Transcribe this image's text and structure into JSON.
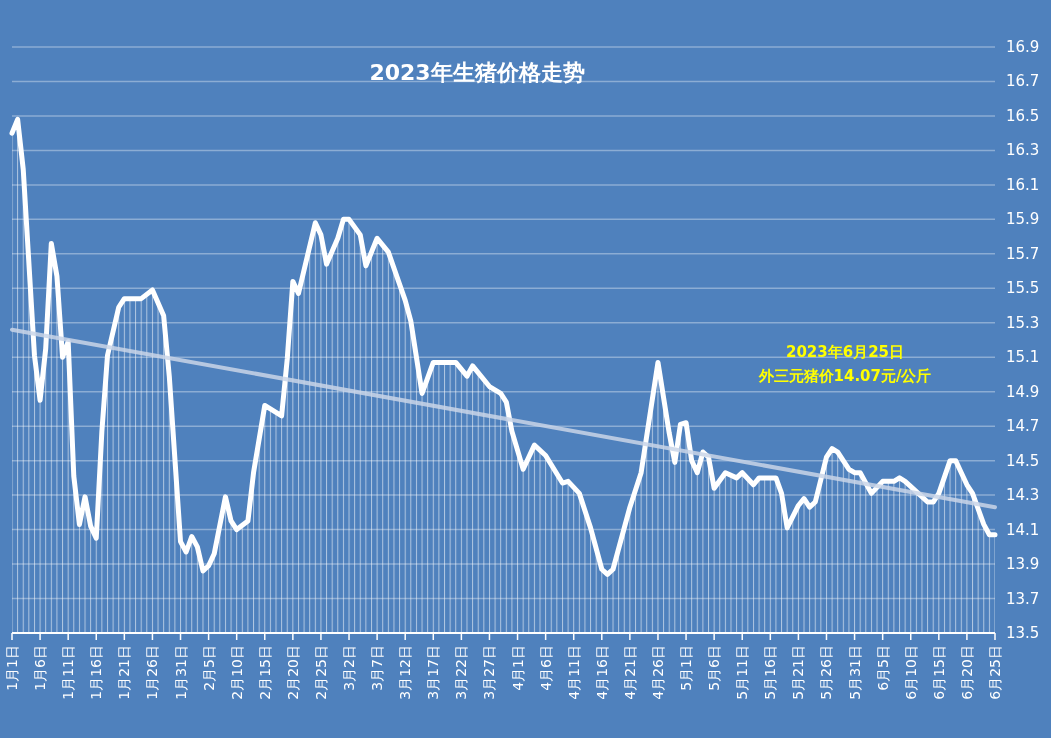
{
  "chart_data": {
    "type": "area",
    "title": "2023年生猪价格走势",
    "annotations": [
      "2023年6月25日",
      "外三元猪价14.07元/公斤"
    ],
    "xlim": [
      "--01-01",
      "--06-25"
    ],
    "xticks": [
      {
        "value": "--01-01",
        "label": "1月1日"
      },
      {
        "value": "--01-06",
        "label": "1月6日"
      },
      {
        "value": "--01-11",
        "label": "1月11日"
      },
      {
        "value": "--01-16",
        "label": "1月16日"
      },
      {
        "value": "--01-21",
        "label": "1月21日"
      },
      {
        "value": "--01-26",
        "label": "1月26日"
      },
      {
        "value": "--01-31",
        "label": "1月31日"
      },
      {
        "value": "--02-05",
        "label": "2月5日"
      },
      {
        "value": "--02-10",
        "label": "2月10日"
      },
      {
        "value": "--02-15",
        "label": "2月15日"
      },
      {
        "value": "--02-20",
        "label": "2月20日"
      },
      {
        "value": "--02-25",
        "label": "2月25日"
      },
      {
        "value": "--03-02",
        "label": "3月2日"
      },
      {
        "value": "--03-07",
        "label": "3月7日"
      },
      {
        "value": "--03-12",
        "label": "3月12日"
      },
      {
        "value": "--03-17",
        "label": "3月17日"
      },
      {
        "value": "--03-22",
        "label": "3月22日"
      },
      {
        "value": "--03-27",
        "label": "3月27日"
      },
      {
        "value": "--04-01",
        "label": "4月1日"
      },
      {
        "value": "--04-06",
        "label": "4月6日"
      },
      {
        "value": "--04-11",
        "label": "4月11日"
      },
      {
        "value": "--04-16",
        "label": "4月16日"
      },
      {
        "value": "--04-21",
        "label": "4月21日"
      },
      {
        "value": "--04-26",
        "label": "4月26日"
      },
      {
        "value": "--05-01",
        "label": "5月1日"
      },
      {
        "value": "--05-06",
        "label": "5月6日"
      },
      {
        "value": "--05-11",
        "label": "5月11日"
      },
      {
        "value": "--05-16",
        "label": "5月16日"
      },
      {
        "value": "--05-21",
        "label": "5月21日"
      },
      {
        "value": "--05-26",
        "label": "5月26日"
      },
      {
        "value": "--05-31",
        "label": "5月31日"
      },
      {
        "value": "--06-05",
        "label": "6月5日"
      },
      {
        "value": "--06-10",
        "label": "6月10日"
      },
      {
        "value": "--06-15",
        "label": "6月15日"
      },
      {
        "value": "--06-20",
        "label": "6月20日"
      },
      {
        "value": "--06-25",
        "label": "6月25日"
      }
    ],
    "ylim": [
      13.5,
      16.9
    ],
    "yticks": [
      13.5,
      13.7,
      13.9,
      14.1,
      14.3,
      14.5,
      14.7,
      14.9,
      15.1,
      15.3,
      15.5,
      15.7,
      15.9,
      16.1,
      16.3,
      16.5,
      16.7,
      16.9
    ],
    "grid": "y",
    "marker": "none",
    "series": [
      {
        "color": "#ffffff",
        "x": [
          "--01-01",
          "--01-02",
          "--01-03",
          "--01-05",
          "--01-06",
          "--01-07",
          "--01-08",
          "--01-09",
          "--01-10",
          "--01-11",
          "--01-12",
          "--01-13",
          "--01-14",
          "--01-15",
          "--01-16",
          "--01-17",
          "--01-18",
          "--01-20",
          "--01-21",
          "--01-24",
          "--01-26",
          "--01-28",
          "--01-29",
          "--01-31",
          "--02-01",
          "--02-02",
          "--02-03",
          "--02-04",
          "--02-05",
          "--02-06",
          "--02-08",
          "--02-09",
          "--02-10",
          "--02-12",
          "--02-13",
          "--02-15",
          "--02-16",
          "--02-18",
          "--02-19",
          "--02-20",
          "--02-21",
          "--02-24",
          "--02-25",
          "--02-26",
          "--02-28",
          "--03-01",
          "--03-02",
          "--03-04",
          "--03-05",
          "--03-07",
          "--03-09",
          "--03-12",
          "--03-13",
          "--03-15",
          "--03-17",
          "--03-21",
          "--03-23",
          "--03-24",
          "--03-27",
          "--03-29",
          "--03-30",
          "--03-31",
          "--04-02",
          "--04-04",
          "--04-06",
          "--04-09",
          "--04-10",
          "--04-12",
          "--04-14",
          "--04-16",
          "--04-17",
          "--04-18",
          "--04-21",
          "--04-23",
          "--04-26",
          "--04-28",
          "--04-29",
          "--04-30",
          "--05-01",
          "--05-02",
          "--05-03",
          "--05-04",
          "--05-05",
          "--05-06",
          "--05-08",
          "--05-10",
          "--05-11",
          "--05-13",
          "--05-14",
          "--05-17",
          "--05-18",
          "--05-19",
          "--05-21",
          "--05-22",
          "--05-23",
          "--05-24",
          "--05-26",
          "--05-27",
          "--05-28",
          "--05-30",
          "--05-31",
          "--06-01",
          "--06-03",
          "--06-05",
          "--06-07",
          "--06-08",
          "--06-09",
          "--06-11",
          "--06-13",
          "--06-14",
          "--06-15",
          "--06-17",
          "--06-18",
          "--06-19",
          "--06-20",
          "--06-21",
          "--06-23",
          "--06-24",
          "--06-25"
        ],
        "values": [
          16.4,
          16.48,
          16.19,
          15.11,
          14.85,
          15.15,
          15.76,
          15.57,
          15.1,
          15.19,
          14.41,
          14.13,
          14.29,
          14.12,
          14.05,
          14.67,
          15.11,
          15.39,
          15.44,
          15.44,
          15.49,
          15.34,
          14.99,
          14.03,
          13.97,
          14.06,
          14.0,
          13.86,
          13.89,
          13.96,
          14.29,
          14.15,
          14.1,
          14.15,
          14.43,
          14.82,
          14.8,
          14.76,
          15.09,
          15.54,
          15.47,
          15.88,
          15.81,
          15.64,
          15.79,
          15.9,
          15.9,
          15.81,
          15.63,
          15.79,
          15.71,
          15.43,
          15.31,
          14.89,
          15.07,
          15.07,
          14.99,
          15.05,
          14.93,
          14.89,
          14.84,
          14.67,
          14.45,
          14.59,
          14.53,
          14.37,
          14.38,
          14.31,
          14.11,
          13.87,
          13.84,
          13.87,
          14.23,
          14.43,
          15.07,
          14.66,
          14.49,
          14.71,
          14.72,
          14.5,
          14.43,
          14.55,
          14.52,
          14.34,
          14.43,
          14.4,
          14.43,
          14.36,
          14.4,
          14.4,
          14.31,
          14.11,
          14.24,
          14.28,
          14.23,
          14.26,
          14.52,
          14.57,
          14.55,
          14.45,
          14.43,
          14.43,
          14.31,
          14.38,
          14.38,
          14.4,
          14.38,
          14.32,
          14.26,
          14.26,
          14.31,
          14.5,
          14.5,
          14.43,
          14.36,
          14.31,
          14.13,
          14.07,
          14.07
        ]
      },
      {
        "type": "line",
        "color": "#c9d5e8",
        "x": [
          "--01-01",
          "--06-25"
        ],
        "values": [
          15.26,
          14.23
        ]
      }
    ]
  }
}
